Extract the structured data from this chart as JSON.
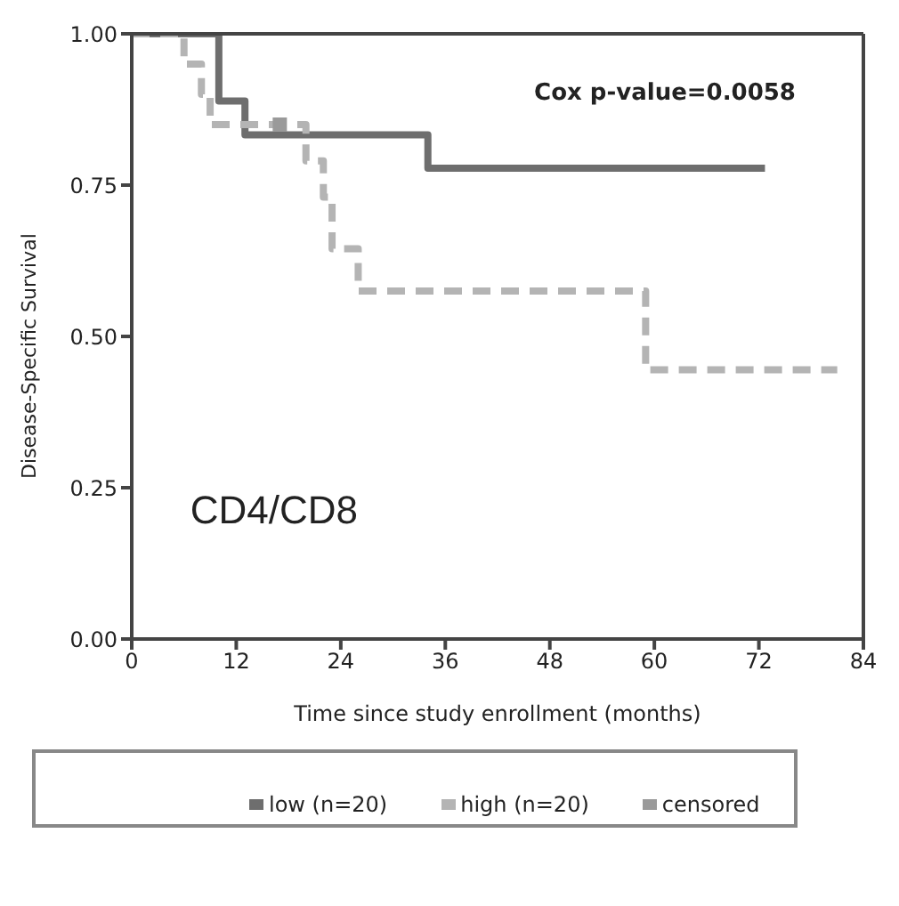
{
  "chart_data": {
    "type": "step",
    "xlabel": "Time since study enrollment (months)",
    "ylabel": "Disease-Specific Survival",
    "annotations": [
      "Cox p-value=0.0058",
      "CD4/CD8"
    ],
    "xlim": [
      0,
      84
    ],
    "xticks": [
      0,
      12,
      24,
      36,
      48,
      60,
      72,
      84
    ],
    "ylim": [
      0,
      1
    ],
    "yticks": [
      {
        "value": 0,
        "label": "0.00"
      },
      {
        "value": 0.25,
        "label": "0.25"
      },
      {
        "value": 0.5,
        "label": "0.50"
      },
      {
        "value": 0.75,
        "label": "0.75"
      },
      {
        "value": 1,
        "label": "1.00"
      }
    ],
    "grid": false,
    "legend": "bottom",
    "series": [
      {
        "name": "low (n=20)",
        "color": "#6e6e6e",
        "line_style": "solid",
        "x": [
          0,
          10,
          13,
          34,
          72.7
        ],
        "values": [
          1,
          0.889,
          0.833,
          0.778,
          0.778
        ]
      },
      {
        "name": "high (n=20)",
        "color": "#b4b4b4",
        "line_style": "dashed",
        "x": [
          0,
          6,
          8,
          9,
          20,
          22,
          23,
          26,
          59,
          81
        ],
        "values": [
          1,
          0.95,
          0.9,
          0.85,
          0.79,
          0.73,
          0.645,
          0.575,
          0.445,
          0.445
        ]
      },
      {
        "name": "censored",
        "type": "scatter",
        "marker": "square",
        "color": "#9a9a9a",
        "x": [
          17
        ],
        "values": [
          0.85
        ]
      }
    ]
  }
}
